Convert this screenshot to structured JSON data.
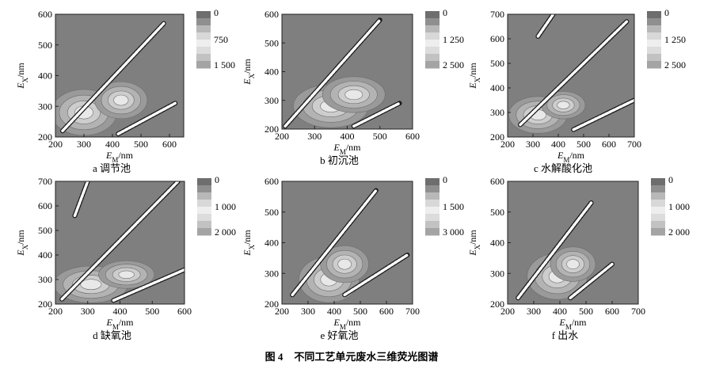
{
  "figure": {
    "caption_number": "图 4",
    "caption_title": "不同工艺单元废水三维荧光图谱"
  },
  "colors": {
    "background_level": "#7f7f7f",
    "mid_level": "#b5b5b5",
    "high_level": "#e6e6e6",
    "scatter_line": "#ffffff",
    "axis": "#222222"
  },
  "chart_data": [
    {
      "type": "heatmap",
      "panel_label": "a 调节池",
      "xlabel": "E_M/nm",
      "ylabel": "E_X/nm",
      "xlim": [
        200,
        650
      ],
      "ylim": [
        200,
        600
      ],
      "x_ticks": [
        200,
        300,
        400,
        500,
        600
      ],
      "y_ticks": [
        200,
        300,
        400,
        500,
        600
      ],
      "colorbar_ticks": [
        "0",
        "750",
        "1 500"
      ],
      "contour_peaks": [
        {
          "em": 300,
          "ex": 280,
          "intensity": 1500
        },
        {
          "em": 430,
          "ex": 320,
          "intensity": 1200
        }
      ],
      "scatter_lines": [
        {
          "from": [
            225,
            220
          ],
          "to": [
            580,
            570
          ]
        },
        {
          "from": [
            420,
            210
          ],
          "to": [
            620,
            310
          ]
        }
      ]
    },
    {
      "type": "heatmap",
      "panel_label": "b 初沉池",
      "xlabel": "E_M/nm",
      "ylabel": "E_X/nm",
      "xlim": [
        200,
        600
      ],
      "ylim": [
        200,
        600
      ],
      "x_ticks": [
        200,
        300,
        400,
        500,
        600
      ],
      "y_ticks": [
        200,
        300,
        400,
        500,
        600
      ],
      "colorbar_ticks": [
        "0",
        "1 250",
        "2 500"
      ],
      "contour_peaks": [
        {
          "em": 350,
          "ex": 280,
          "intensity": 2400
        },
        {
          "em": 420,
          "ex": 320,
          "intensity": 2000
        }
      ],
      "scatter_lines": [
        {
          "from": [
            210,
            210
          ],
          "to": [
            500,
            580
          ]
        },
        {
          "from": [
            420,
            210
          ],
          "to": [
            560,
            290
          ]
        }
      ]
    },
    {
      "type": "heatmap",
      "panel_label": "c 水解酸化池",
      "xlabel": "E_M/nm",
      "ylabel": "E_X/nm",
      "xlim": [
        200,
        700
      ],
      "ylim": [
        200,
        700
      ],
      "x_ticks": [
        200,
        300,
        400,
        500,
        600,
        700
      ],
      "y_ticks": [
        200,
        300,
        400,
        500,
        600,
        700
      ],
      "colorbar_ticks": [
        "0",
        "1 250",
        "2 500"
      ],
      "contour_peaks": [
        {
          "em": 320,
          "ex": 290,
          "intensity": 2400
        },
        {
          "em": 420,
          "ex": 330,
          "intensity": 1800
        }
      ],
      "scatter_lines": [
        {
          "from": [
            250,
            250
          ],
          "to": [
            670,
            670
          ]
        },
        {
          "from": [
            460,
            230
          ],
          "to": [
            700,
            350
          ]
        },
        {
          "from": [
            320,
            610
          ],
          "to": [
            380,
            700
          ]
        }
      ]
    },
    {
      "type": "heatmap",
      "panel_label": "d 缺氧池",
      "xlabel": "E_M/nm",
      "ylabel": "E_X/nm",
      "xlim": [
        200,
        600
      ],
      "ylim": [
        200,
        700
      ],
      "x_ticks": [
        200,
        300,
        400,
        500,
        600
      ],
      "y_ticks": [
        200,
        300,
        400,
        500,
        600,
        700
      ],
      "colorbar_ticks": [
        "0",
        "1 000",
        "2 000"
      ],
      "contour_peaks": [
        {
          "em": 310,
          "ex": 280,
          "intensity": 2000
        },
        {
          "em": 420,
          "ex": 320,
          "intensity": 1500
        }
      ],
      "scatter_lines": [
        {
          "from": [
            220,
            220
          ],
          "to": [
            580,
            700
          ]
        },
        {
          "from": [
            380,
            215
          ],
          "to": [
            600,
            340
          ]
        },
        {
          "from": [
            260,
            560
          ],
          "to": [
            300,
            700
          ]
        }
      ]
    },
    {
      "type": "heatmap",
      "panel_label": "e 好氧池",
      "xlabel": "E_M/nm",
      "ylabel": "E_X/nm",
      "xlim": [
        200,
        700
      ],
      "ylim": [
        200,
        600
      ],
      "x_ticks": [
        200,
        300,
        400,
        500,
        600,
        700
      ],
      "y_ticks": [
        200,
        300,
        400,
        500,
        600
      ],
      "colorbar_ticks": [
        "0",
        "1 500",
        "3 000"
      ],
      "contour_peaks": [
        {
          "em": 380,
          "ex": 280,
          "intensity": 1500
        },
        {
          "em": 440,
          "ex": 330,
          "intensity": 1200
        }
      ],
      "scatter_lines": [
        {
          "from": [
            240,
            230
          ],
          "to": [
            560,
            570
          ]
        },
        {
          "from": [
            440,
            230
          ],
          "to": [
            680,
            360
          ]
        }
      ]
    },
    {
      "type": "heatmap",
      "panel_label": "f 出水",
      "xlabel": "E_M/nm",
      "ylabel": "E_X/nm",
      "xlim": [
        200,
        700
      ],
      "ylim": [
        200,
        600
      ],
      "x_ticks": [
        200,
        300,
        400,
        500,
        600,
        700
      ],
      "y_ticks": [
        200,
        300,
        400,
        500,
        600
      ],
      "colorbar_ticks": [
        "0",
        "1 000",
        "2 000"
      ],
      "contour_peaks": [
        {
          "em": 390,
          "ex": 290,
          "intensity": 1200
        },
        {
          "em": 450,
          "ex": 330,
          "intensity": 900
        }
      ],
      "scatter_lines": [
        {
          "from": [
            240,
            220
          ],
          "to": [
            520,
            530
          ]
        },
        {
          "from": [
            440,
            220
          ],
          "to": [
            600,
            330
          ]
        }
      ]
    }
  ]
}
